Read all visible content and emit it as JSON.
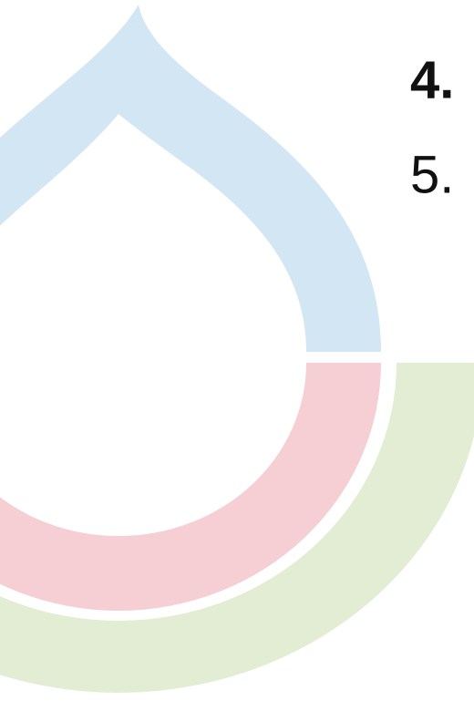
{
  "items": [
    {
      "label": "4."
    },
    {
      "label": "5."
    }
  ]
}
